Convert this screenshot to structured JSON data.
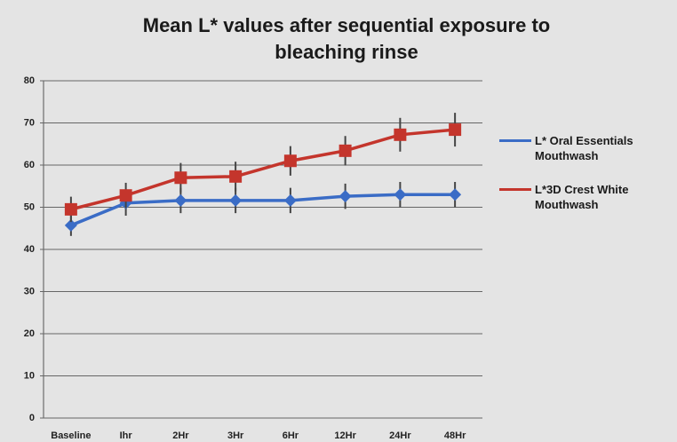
{
  "chart_data": {
    "type": "line",
    "title": "Mean L* values after sequential exposure to bleaching rinse",
    "categories": [
      "Baseline",
      "Ihr",
      "2Hr",
      "3Hr",
      "6Hr",
      "12Hr",
      "24Hr",
      "48Hr"
    ],
    "series": [
      {
        "name": "L* Oral Essentials Mouthwash",
        "color": "#3a6cc6",
        "marker": "diamond",
        "values": [
          45.7,
          51,
          51.6,
          51.6,
          51.6,
          52.6,
          53,
          53
        ],
        "errors": [
          2.5,
          3,
          3,
          3,
          3,
          3,
          3,
          3
        ]
      },
      {
        "name": "L*3D Crest White Mouthwash",
        "color": "#c4352c",
        "marker": "square",
        "values": [
          49.5,
          52.8,
          57,
          57.3,
          61,
          63.4,
          67.2,
          68.4
        ],
        "errors": [
          3,
          3,
          3.5,
          3.5,
          3.5,
          3.5,
          4,
          4
        ]
      }
    ],
    "ylim": [
      0,
      80
    ],
    "yticks": [
      0,
      10,
      20,
      30,
      40,
      50,
      60,
      70,
      80
    ],
    "grid": true,
    "legend": "right"
  }
}
